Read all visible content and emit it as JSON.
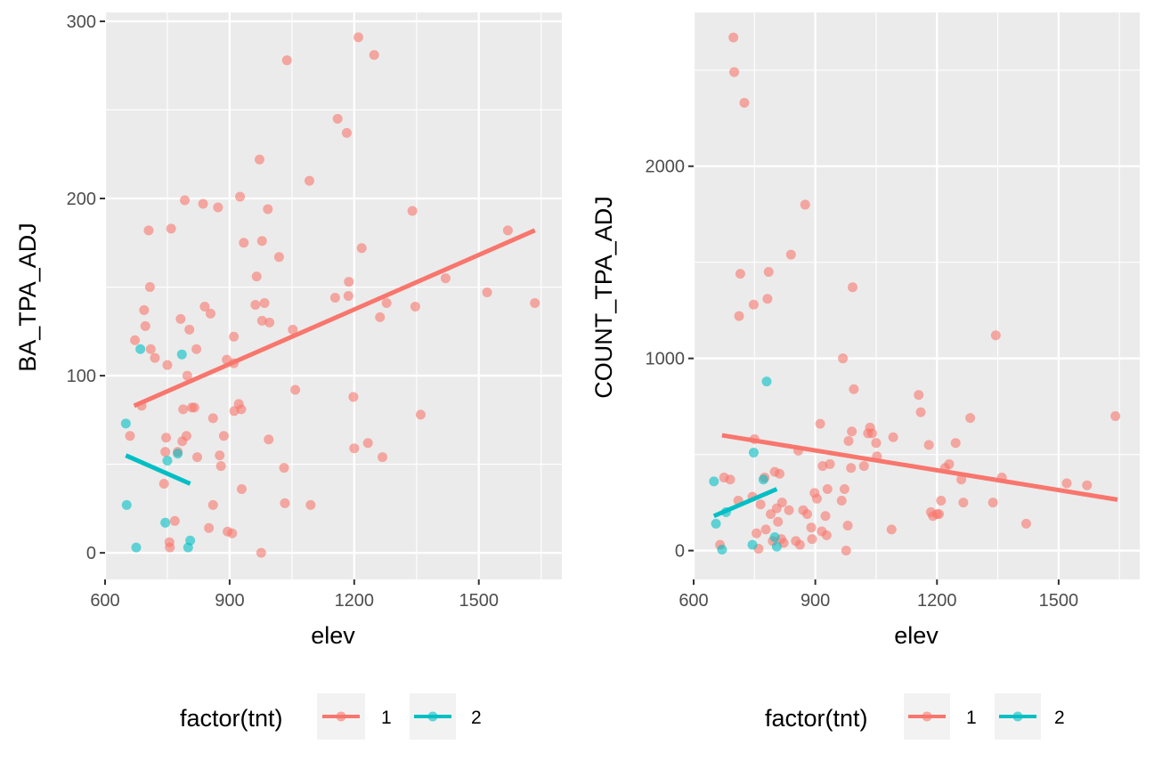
{
  "colors": {
    "tnt1": "#F8766D",
    "tnt2": "#00BFC4",
    "panel_bg": "#EBEBEB",
    "grid": "#FFFFFF"
  },
  "chart_data": [
    {
      "type": "scatter",
      "xlabel": "elev",
      "ylabel": "BA_TPA_ADJ",
      "xlim": [
        600,
        1700
      ],
      "ylim": [
        -15,
        305
      ],
      "xticks": [
        600,
        900,
        1200,
        1500
      ],
      "yticks": [
        0,
        100,
        200,
        300
      ],
      "x_tick_labels": [
        "600",
        "900",
        "1200",
        "1500"
      ],
      "y_tick_labels": [
        "0",
        "100",
        "200",
        "300"
      ],
      "grid": true,
      "legend_position": "bottom",
      "series": [
        {
          "name": "1",
          "points": [
            [
              660,
              66
            ],
            [
              672,
              120
            ],
            [
              688,
              83
            ],
            [
              694,
              137
            ],
            [
              697,
              128
            ],
            [
              705,
              182
            ],
            [
              708,
              150
            ],
            [
              710,
              115
            ],
            [
              720,
              110
            ],
            [
              742,
              39
            ],
            [
              745,
              57
            ],
            [
              747,
              65
            ],
            [
              750,
              106
            ],
            [
              755,
              6
            ],
            [
              756,
              3
            ],
            [
              759,
              183
            ],
            [
              768,
              18
            ],
            [
              775,
              57
            ],
            [
              782,
              132
            ],
            [
              786,
              63
            ],
            [
              788,
              81
            ],
            [
              792,
              199
            ],
            [
              796,
              66
            ],
            [
              798,
              100
            ],
            [
              803,
              126
            ],
            [
              809,
              82
            ],
            [
              815,
              82
            ],
            [
              820,
              115
            ],
            [
              822,
              54
            ],
            [
              836,
              197
            ],
            [
              840,
              139
            ],
            [
              850,
              14
            ],
            [
              854,
              135
            ],
            [
              860,
              27
            ],
            [
              860,
              76
            ],
            [
              872,
              195
            ],
            [
              876,
              55
            ],
            [
              879,
              49
            ],
            [
              886,
              66
            ],
            [
              893,
              109
            ],
            [
              895,
              12
            ],
            [
              906,
              11
            ],
            [
              910,
              107
            ],
            [
              910,
              122
            ],
            [
              911,
              80
            ],
            [
              922,
              84
            ],
            [
              925,
              201
            ],
            [
              928,
              81
            ],
            [
              929,
              36
            ],
            [
              934,
              175
            ],
            [
              962,
              140
            ],
            [
              965,
              156
            ],
            [
              972,
              222
            ],
            [
              976,
              0
            ],
            [
              978,
              176
            ],
            [
              978,
              131
            ],
            [
              984,
              141
            ],
            [
              992,
              194
            ],
            [
              994,
              64
            ],
            [
              996,
              130
            ],
            [
              1019,
              167
            ],
            [
              1031,
              48
            ],
            [
              1033,
              28
            ],
            [
              1038,
              278
            ],
            [
              1052,
              126
            ],
            [
              1058,
              92
            ],
            [
              1092,
              210
            ],
            [
              1095,
              27
            ],
            [
              1154,
              144
            ],
            [
              1160,
              245
            ],
            [
              1182,
              237
            ],
            [
              1186,
              145
            ],
            [
              1187,
              153
            ],
            [
              1198,
              88
            ],
            [
              1200,
              59
            ],
            [
              1210,
              291
            ],
            [
              1218,
              172
            ],
            [
              1233,
              62
            ],
            [
              1248,
              281
            ],
            [
              1262,
              133
            ],
            [
              1268,
              54
            ],
            [
              1278,
              141
            ],
            [
              1340,
              193
            ],
            [
              1347,
              139
            ],
            [
              1360,
              78
            ],
            [
              1420,
              155
            ],
            [
              1520,
              147
            ],
            [
              1570,
              182
            ],
            [
              1635,
              141
            ]
          ],
          "fit": [
            [
              670,
              83
            ],
            [
              1635,
              182
            ]
          ]
        },
        {
          "name": "2",
          "points": [
            [
              650,
              73
            ],
            [
              652,
              27
            ],
            [
              675,
              3
            ],
            [
              685,
              115
            ],
            [
              745,
              17
            ],
            [
              750,
              52
            ],
            [
              775,
              56
            ],
            [
              785,
              112
            ],
            [
              800,
              3
            ],
            [
              805,
              7
            ]
          ],
          "fit": [
            [
              650,
              55
            ],
            [
              805,
              39
            ]
          ]
        }
      ]
    },
    {
      "type": "scatter",
      "xlabel": "elev",
      "ylabel": "COUNT_TPA_ADJ",
      "xlim": [
        600,
        1700
      ],
      "ylim": [
        -150,
        2800
      ],
      "xticks": [
        600,
        900,
        1200,
        1500
      ],
      "yticks": [
        0,
        1000,
        2000
      ],
      "x_tick_labels": [
        "600",
        "900",
        "1200",
        "1500"
      ],
      "y_tick_labels": [
        "0",
        "1000",
        "2000"
      ],
      "grid": true,
      "legend_position": "bottom",
      "series": [
        {
          "name": "1",
          "points": [
            [
              665,
              30
            ],
            [
              675,
              380
            ],
            [
              690,
              370
            ],
            [
              698,
              2670
            ],
            [
              700,
              2490
            ],
            [
              710,
              260
            ],
            [
              712,
              1220
            ],
            [
              715,
              1440
            ],
            [
              725,
              2330
            ],
            [
              745,
              280
            ],
            [
              748,
              1280
            ],
            [
              750,
              580
            ],
            [
              755,
              90
            ],
            [
              760,
              10
            ],
            [
              765,
              240
            ],
            [
              775,
              380
            ],
            [
              778,
              110
            ],
            [
              782,
              1310
            ],
            [
              785,
              1450
            ],
            [
              790,
              190
            ],
            [
              795,
              50
            ],
            [
              800,
              410
            ],
            [
              805,
              220
            ],
            [
              808,
              150
            ],
            [
              812,
              400
            ],
            [
              816,
              60
            ],
            [
              818,
              250
            ],
            [
              822,
              40
            ],
            [
              835,
              210
            ],
            [
              840,
              1540
            ],
            [
              852,
              50
            ],
            [
              858,
              520
            ],
            [
              862,
              30
            ],
            [
              870,
              210
            ],
            [
              875,
              1800
            ],
            [
              880,
              190
            ],
            [
              890,
              120
            ],
            [
              892,
              60
            ],
            [
              898,
              300
            ],
            [
              904,
              270
            ],
            [
              912,
              660
            ],
            [
              916,
              100
            ],
            [
              918,
              440
            ],
            [
              925,
              180
            ],
            [
              928,
              80
            ],
            [
              930,
              320
            ],
            [
              936,
              450
            ],
            [
              965,
              260
            ],
            [
              968,
              1000
            ],
            [
              972,
              320
            ],
            [
              976,
              0
            ],
            [
              980,
              130
            ],
            [
              982,
              570
            ],
            [
              988,
              430
            ],
            [
              990,
              620
            ],
            [
              992,
              1370
            ],
            [
              995,
              840
            ],
            [
              1020,
              440
            ],
            [
              1030,
              610
            ],
            [
              1035,
              640
            ],
            [
              1040,
              610
            ],
            [
              1050,
              560
            ],
            [
              1052,
              490
            ],
            [
              1088,
              110
            ],
            [
              1092,
              590
            ],
            [
              1155,
              810
            ],
            [
              1160,
              720
            ],
            [
              1180,
              550
            ],
            [
              1185,
              200
            ],
            [
              1190,
              180
            ],
            [
              1200,
              190
            ],
            [
              1205,
              190
            ],
            [
              1210,
              260
            ],
            [
              1220,
              430
            ],
            [
              1230,
              450
            ],
            [
              1246,
              560
            ],
            [
              1260,
              370
            ],
            [
              1265,
              250
            ],
            [
              1282,
              690
            ],
            [
              1338,
              250
            ],
            [
              1345,
              1120
            ],
            [
              1360,
              380
            ],
            [
              1420,
              140
            ],
            [
              1520,
              350
            ],
            [
              1570,
              340
            ],
            [
              1640,
              700
            ]
          ],
          "fit": [
            [
              670,
              600
            ],
            [
              1645,
              265
            ]
          ]
        },
        {
          "name": "2",
          "points": [
            [
              650,
              360
            ],
            [
              655,
              140
            ],
            [
              670,
              5
            ],
            [
              680,
              200
            ],
            [
              745,
              30
            ],
            [
              748,
              510
            ],
            [
              772,
              370
            ],
            [
              780,
              880
            ],
            [
              800,
              70
            ],
            [
              805,
              20
            ]
          ],
          "fit": [
            [
              650,
              180
            ],
            [
              805,
              320
            ]
          ]
        }
      ]
    }
  ],
  "legend": {
    "title": "factor(tnt)",
    "items": [
      "1",
      "2"
    ]
  }
}
